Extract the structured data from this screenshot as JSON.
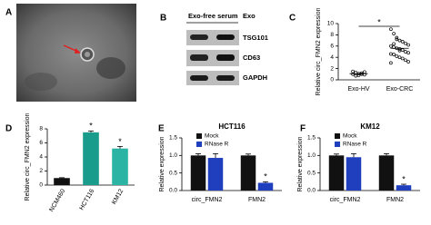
{
  "panel_labels": [
    "A",
    "B",
    "C",
    "D",
    "E",
    "F"
  ],
  "blot": {
    "columns": [
      "Exo-free serum",
      "Exo"
    ],
    "proteins": [
      "TSG101",
      "CD63",
      "GAPDH"
    ]
  },
  "chart_data": [
    {
      "type": "dot",
      "ylabel": "Relative circ_FMN2 expression",
      "categories": [
        "Exo-HV",
        "Exo-CRC"
      ],
      "groups": [
        [
          1.0,
          1.3,
          0.8,
          1.2,
          0.9,
          1.5,
          0.7,
          1.1,
          1.0,
          1.4
        ],
        [
          9.0,
          8.2,
          7.5,
          7.0,
          6.8,
          6.5,
          6.2,
          6.0,
          5.8,
          5.6,
          5.5,
          5.3,
          5.0,
          4.8,
          4.6,
          4.5,
          4.2,
          4.0,
          3.8,
          3.5,
          3.2,
          3.0,
          6.4,
          7.2,
          5.2
        ]
      ],
      "means": [
        1.1,
        5.6
      ],
      "color": "#000000",
      "annotation": "*",
      "ylim": [
        0,
        10
      ],
      "yticks": [
        0,
        2,
        4,
        6,
        8,
        10
      ]
    },
    {
      "type": "bar",
      "ylabel": "Relative circ_FMN2 expression",
      "categories": [
        "NCM460",
        "HCT116",
        "KM12"
      ],
      "values": [
        1,
        7.5,
        5.2
      ],
      "errors": [
        0.05,
        0.2,
        0.3
      ],
      "colors": [
        "#111111",
        "#1a9c8c",
        "#2bb3a3"
      ],
      "annotations": [
        null,
        "*",
        "*"
      ],
      "ylim": [
        0,
        8
      ],
      "yticks": [
        0,
        2,
        4,
        6,
        8
      ]
    },
    {
      "type": "grouped_bar",
      "title": "HCT116",
      "ylabel": "Relative expression",
      "categories": [
        "circ_FMN2",
        "FMN2"
      ],
      "series": [
        {
          "name": "Mock",
          "color": "#111111",
          "values": [
            1.0,
            1.0
          ],
          "errors": [
            0.05,
            0.04
          ],
          "annotations": [
            null,
            null
          ]
        },
        {
          "name": "RNase R",
          "color": "#1f3fbf",
          "values": [
            0.93,
            0.22
          ],
          "errors": [
            0.12,
            0.03
          ],
          "annotations": [
            null,
            "*"
          ]
        }
      ],
      "ylim": [
        0,
        1.5
      ],
      "yticks": [
        {
          "value": 0,
          "label": "0.0"
        },
        0.5,
        {
          "value": 1,
          "label": "1.0"
        },
        1.5
      ]
    },
    {
      "type": "grouped_bar",
      "title": "KM12",
      "ylabel": "Relative expression",
      "categories": [
        "circ_FMN2",
        "FMN2"
      ],
      "series": [
        {
          "name": "Mock",
          "color": "#111111",
          "values": [
            1.0,
            1.0
          ],
          "errors": [
            0.04,
            0.05
          ],
          "annotations": [
            null,
            null
          ]
        },
        {
          "name": "RNase R",
          "color": "#1f3fbf",
          "values": [
            0.95,
            0.15
          ],
          "errors": [
            0.1,
            0.03
          ],
          "annotations": [
            null,
            "*"
          ]
        }
      ],
      "ylim": [
        0,
        1.5
      ],
      "yticks": [
        {
          "value": 0,
          "label": "0.0"
        },
        0.5,
        {
          "value": 1,
          "label": "1.0"
        },
        1.5
      ]
    }
  ]
}
